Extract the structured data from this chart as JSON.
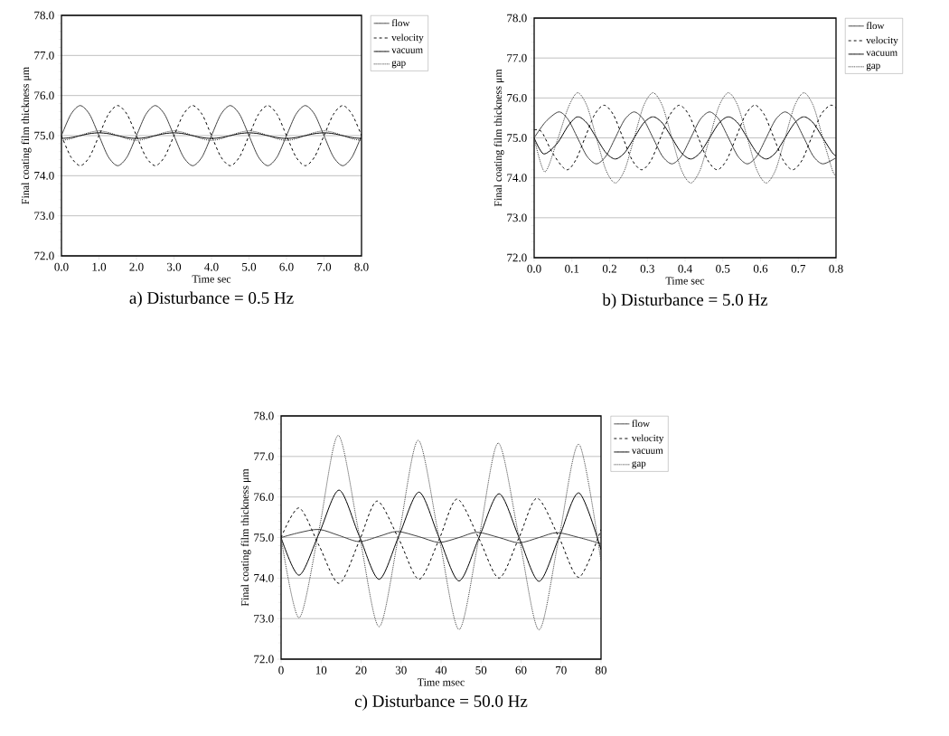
{
  "chart_data": [
    {
      "type": "line",
      "title": "a) Disturbance = 0.5 Hz",
      "xlabel": "Time sec",
      "ylabel": "Final coating film thickness μm",
      "x": [
        0,
        0.25,
        0.5,
        0.75,
        1,
        1.25,
        1.5,
        1.75,
        2,
        2.25,
        2.5,
        2.75,
        3,
        3.25,
        3.5,
        3.75,
        4,
        4.25,
        4.5,
        4.75,
        5,
        5.25,
        5.5,
        5.75,
        6,
        6.25,
        6.5,
        6.75,
        7,
        7.25,
        7.5,
        7.75,
        8
      ],
      "series": [
        {
          "name": "flow",
          "color": "#404040",
          "line_style": "solid",
          "values": [
            75.0,
            75.53,
            75.75,
            75.53,
            75.0,
            74.47,
            74.25,
            74.47,
            75.0,
            75.53,
            75.75,
            75.53,
            75.0,
            74.47,
            74.25,
            74.47,
            75.0,
            75.53,
            75.75,
            75.53,
            75.0,
            74.47,
            74.25,
            74.47,
            75.0,
            75.53,
            75.75,
            75.53,
            75.0,
            74.47,
            74.25,
            74.47,
            75.0
          ]
        },
        {
          "name": "velocity",
          "color": "#000000",
          "line_style": "dashed",
          "values": [
            75.0,
            74.47,
            74.25,
            74.47,
            75.0,
            75.53,
            75.75,
            75.53,
            75.0,
            74.47,
            74.25,
            74.47,
            75.0,
            75.53,
            75.75,
            75.53,
            75.0,
            74.47,
            74.25,
            74.47,
            75.0,
            75.53,
            75.75,
            75.53,
            75.0,
            74.47,
            74.25,
            74.47,
            75.0,
            75.53,
            75.75,
            75.53,
            75.0
          ]
        },
        {
          "name": "vacuum",
          "color": "#000000",
          "line_style": "solid",
          "values": [
            74.93,
            74.95,
            75.0,
            75.05,
            75.07,
            75.05,
            75.0,
            74.95,
            74.93,
            74.95,
            75.0,
            75.05,
            75.07,
            75.05,
            75.0,
            74.95,
            74.93,
            74.95,
            75.0,
            75.05,
            75.07,
            75.05,
            75.0,
            74.95,
            74.93,
            74.95,
            75.0,
            75.05,
            75.07,
            75.05,
            75.0,
            74.95,
            74.93
          ]
        },
        {
          "name": "gap",
          "color": "#404040",
          "line_style": "dotted",
          "values": [
            74.88,
            74.92,
            75.0,
            75.08,
            75.12,
            75.08,
            75.0,
            74.92,
            74.88,
            74.92,
            75.0,
            75.08,
            75.12,
            75.08,
            75.0,
            74.92,
            74.88,
            74.92,
            75.0,
            75.08,
            75.12,
            75.08,
            75.0,
            74.92,
            74.88,
            74.92,
            75.0,
            75.08,
            75.12,
            75.08,
            75.0,
            74.92,
            74.88
          ]
        }
      ],
      "xlim": [
        0,
        8
      ],
      "ylim": [
        72,
        78
      ],
      "xticks": [
        {
          "value": 0,
          "label": "0.0"
        },
        {
          "value": 1,
          "label": "1.0"
        },
        {
          "value": 2,
          "label": "2.0"
        },
        {
          "value": 3,
          "label": "3.0"
        },
        {
          "value": 4,
          "label": "4.0"
        },
        {
          "value": 5,
          "label": "5.0"
        },
        {
          "value": 6,
          "label": "6.0"
        },
        {
          "value": 7,
          "label": "7.0"
        },
        {
          "value": 8,
          "label": "8.0"
        }
      ],
      "yticks": [
        {
          "value": 72,
          "label": "72.0"
        },
        {
          "value": 73,
          "label": "73.0"
        },
        {
          "value": 74,
          "label": "74.0"
        },
        {
          "value": 75,
          "label": "75.0"
        },
        {
          "value": 76,
          "label": "76.0"
        },
        {
          "value": 77,
          "label": "77.0"
        },
        {
          "value": 78,
          "label": "78.0"
        }
      ],
      "grid": "y",
      "legend": "right"
    },
    {
      "type": "line",
      "title": "b) Disturbance = 5.0 Hz",
      "xlabel": "Time sec",
      "ylabel": "Final coating film thickness μm",
      "series": [
        {
          "name": "flow",
          "color": "#404040",
          "line_style": "solid",
          "x": [
            0,
            0.03,
            0.065,
            0.09,
            0.115,
            0.14,
            0.165,
            0.19,
            0.215,
            0.24,
            0.265,
            0.29,
            0.315,
            0.34,
            0.365,
            0.39,
            0.415,
            0.44,
            0.465,
            0.49,
            0.515,
            0.54,
            0.565,
            0.59,
            0.615,
            0.64,
            0.665,
            0.69,
            0.715,
            0.74,
            0.765,
            0.8
          ],
          "values": [
            75.0,
            75.4,
            75.65,
            75.46,
            75.0,
            74.54,
            74.35,
            74.54,
            75.0,
            75.46,
            75.65,
            75.46,
            75.0,
            74.54,
            74.35,
            74.54,
            75.0,
            75.46,
            75.65,
            75.46,
            75.0,
            74.54,
            74.35,
            74.54,
            75.0,
            75.46,
            75.65,
            75.46,
            75.0,
            74.54,
            74.35,
            74.5
          ]
        },
        {
          "name": "velocity",
          "color": "#000000",
          "line_style": "dashed",
          "x": [
            0,
            0.02,
            0.05,
            0.085,
            0.11,
            0.135,
            0.16,
            0.185,
            0.21,
            0.235,
            0.26,
            0.285,
            0.31,
            0.335,
            0.36,
            0.385,
            0.41,
            0.435,
            0.46,
            0.485,
            0.51,
            0.535,
            0.56,
            0.585,
            0.61,
            0.635,
            0.66,
            0.685,
            0.71,
            0.735,
            0.76,
            0.785,
            0.8
          ],
          "values": [
            75.2,
            75.15,
            74.6,
            74.2,
            74.44,
            75.01,
            75.58,
            75.82,
            75.58,
            75.01,
            74.44,
            74.2,
            74.44,
            75.01,
            75.58,
            75.82,
            75.58,
            75.01,
            74.44,
            74.2,
            74.44,
            75.01,
            75.58,
            75.82,
            75.58,
            75.01,
            74.44,
            74.2,
            74.44,
            75.01,
            75.58,
            75.82,
            75.75
          ]
        },
        {
          "name": "vacuum",
          "color": "#000000",
          "line_style": "solid",
          "x": [
            0,
            0.025,
            0.06,
            0.09,
            0.115,
            0.14,
            0.165,
            0.19,
            0.215,
            0.24,
            0.265,
            0.29,
            0.315,
            0.34,
            0.365,
            0.39,
            0.415,
            0.44,
            0.465,
            0.49,
            0.515,
            0.54,
            0.565,
            0.59,
            0.615,
            0.64,
            0.665,
            0.69,
            0.715,
            0.74,
            0.765,
            0.79,
            0.8
          ],
          "values": [
            75.0,
            74.6,
            74.85,
            75.3,
            75.53,
            75.37,
            75.0,
            74.63,
            74.47,
            74.63,
            75.0,
            75.37,
            75.53,
            75.37,
            75.0,
            74.63,
            74.47,
            74.63,
            75.0,
            75.37,
            75.53,
            75.37,
            75.0,
            74.63,
            74.47,
            74.63,
            75.0,
            75.37,
            75.53,
            75.37,
            75.0,
            74.63,
            74.55
          ]
        },
        {
          "name": "gap",
          "color": "#404040",
          "line_style": "dotted",
          "x": [
            0,
            0.028,
            0.06,
            0.09,
            0.115,
            0.14,
            0.165,
            0.19,
            0.215,
            0.24,
            0.265,
            0.29,
            0.315,
            0.34,
            0.365,
            0.39,
            0.415,
            0.44,
            0.465,
            0.49,
            0.515,
            0.54,
            0.565,
            0.59,
            0.615,
            0.64,
            0.665,
            0.69,
            0.715,
            0.74,
            0.765,
            0.79,
            0.8
          ],
          "values": [
            75.0,
            74.15,
            74.9,
            75.75,
            76.13,
            75.8,
            75.0,
            74.2,
            73.87,
            74.2,
            75.0,
            75.8,
            76.13,
            75.8,
            75.0,
            74.2,
            73.87,
            74.2,
            75.0,
            75.8,
            76.13,
            75.8,
            75.0,
            74.2,
            73.87,
            74.2,
            75.0,
            75.8,
            76.13,
            75.8,
            75.0,
            74.2,
            74.05
          ]
        }
      ],
      "xlim": [
        0,
        0.8
      ],
      "ylim": [
        72,
        78
      ],
      "xticks": [
        {
          "value": 0,
          "label": "0.0"
        },
        0.1,
        0.2,
        0.3,
        0.4,
        0.5,
        0.6,
        0.7,
        0.8
      ],
      "yticks": [
        {
          "value": 72,
          "label": "72.0"
        },
        {
          "value": 73,
          "label": "73.0"
        },
        {
          "value": 74,
          "label": "74.0"
        },
        {
          "value": 75,
          "label": "75.0"
        },
        {
          "value": 76,
          "label": "76.0"
        },
        {
          "value": 77,
          "label": "77.0"
        },
        {
          "value": 78,
          "label": "78.0"
        }
      ],
      "grid": "y",
      "legend": "right"
    },
    {
      "type": "line",
      "title": "c) Disturbance = 50.0 Hz",
      "xlabel": "Time msec",
      "ylabel": "Final coating film thickness μm",
      "series": [
        {
          "name": "flow",
          "color": "#404040",
          "line_style": "solid",
          "x": [
            0,
            4.5,
            9.5,
            14.5,
            19.5,
            24.5,
            29,
            34.5,
            39.5,
            44.5,
            49,
            54.5,
            59.5,
            64.5,
            69,
            74.5,
            80
          ],
          "values": [
            75.0,
            75.12,
            75.2,
            75.05,
            74.9,
            75.03,
            75.15,
            75.02,
            74.88,
            75.0,
            75.13,
            75.0,
            74.87,
            75.0,
            75.12,
            75.0,
            74.85
          ]
        },
        {
          "name": "velocity",
          "color": "#000000",
          "line_style": "dashed",
          "x": [
            0,
            4.5,
            9.5,
            14.5,
            19.5,
            24,
            29.5,
            34.5,
            39.5,
            44,
            49.5,
            54.5,
            59.5,
            64,
            69.5,
            74.5,
            80
          ],
          "values": [
            75.0,
            75.73,
            74.8,
            73.87,
            74.9,
            75.9,
            74.95,
            73.97,
            74.95,
            75.95,
            74.97,
            74.0,
            75.0,
            75.97,
            75.0,
            74.02,
            75.2
          ]
        },
        {
          "name": "vacuum",
          "color": "#000000",
          "line_style": "solid",
          "x": [
            0,
            4.5,
            9.5,
            14.5,
            19.5,
            24.5,
            29.5,
            34.5,
            39.5,
            44.5,
            49.5,
            54.5,
            59.5,
            64.5,
            69.5,
            74.5,
            80
          ],
          "values": [
            75.0,
            74.07,
            75.1,
            76.17,
            75.05,
            73.97,
            75.05,
            76.12,
            75.0,
            73.93,
            75.0,
            76.08,
            75.0,
            73.92,
            75.0,
            76.1,
            74.7
          ]
        },
        {
          "name": "gap",
          "color": "#404040",
          "line_style": "dotted",
          "x": [
            0,
            4.5,
            9.5,
            14.3,
            19.5,
            24.5,
            29.5,
            34.3,
            39.5,
            44.5,
            49.5,
            54.3,
            59.5,
            64.5,
            69.5,
            74.5,
            80
          ],
          "values": [
            75.0,
            73.02,
            75.2,
            77.52,
            75.1,
            72.8,
            75.1,
            77.4,
            75.0,
            72.73,
            75.0,
            77.33,
            75.0,
            72.72,
            75.0,
            77.3,
            74.4
          ]
        }
      ],
      "xlim": [
        0,
        80
      ],
      "ylim": [
        72,
        78
      ],
      "xticks": [
        0,
        10,
        20,
        30,
        40,
        50,
        60,
        70,
        80
      ],
      "yticks": [
        {
          "value": 72,
          "label": "72.0"
        },
        {
          "value": 73,
          "label": "73.0"
        },
        {
          "value": 74,
          "label": "74.0"
        },
        {
          "value": 75,
          "label": "75.0"
        },
        {
          "value": 76,
          "label": "76.0"
        },
        {
          "value": 77,
          "label": "77.0"
        },
        {
          "value": 78,
          "label": "78.0"
        }
      ],
      "grid": "y",
      "legend": "right"
    }
  ]
}
